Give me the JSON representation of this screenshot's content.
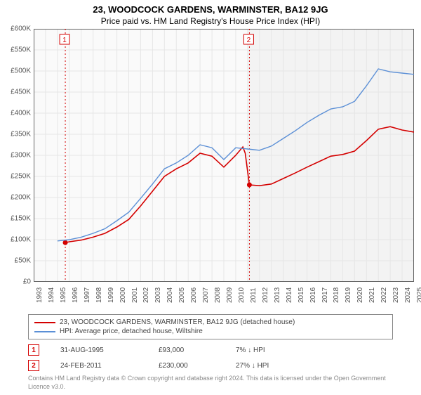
{
  "title": "23, WOODCOCK GARDENS, WARMINSTER, BA12 9JG",
  "subtitle": "Price paid vs. HM Land Registry's House Price Index (HPI)",
  "chart": {
    "type": "line",
    "background_color": "#ffffff",
    "plot_left_bg": "#fafafa",
    "plot_right_bg": "#f3f3f3",
    "grid_color": "#e6e6e6",
    "axis_color": "#666666",
    "x_years": [
      1993,
      1994,
      1995,
      1996,
      1997,
      1998,
      1999,
      2000,
      2001,
      2002,
      2003,
      2004,
      2005,
      2006,
      2007,
      2008,
      2009,
      2010,
      2011,
      2012,
      2013,
      2014,
      2015,
      2016,
      2017,
      2018,
      2019,
      2020,
      2021,
      2022,
      2023,
      2024,
      2025
    ],
    "vline_year": 2011,
    "ylim": [
      0,
      600000
    ],
    "ytick_step": 50000,
    "yticks_labels": [
      "£0",
      "£50K",
      "£100K",
      "£150K",
      "£200K",
      "£250K",
      "£300K",
      "£350K",
      "£400K",
      "£450K",
      "£500K",
      "£550K",
      "£600K"
    ],
    "label_fontsize": 10,
    "series": [
      {
        "name": "property",
        "label": "23, WOODCOCK GARDENS, WARMINSTER, BA12 9JG (detached house)",
        "color": "#d40000",
        "line_width": 1.6,
        "points": [
          [
            1995.66,
            93000
          ],
          [
            1996,
            95000
          ],
          [
            1997,
            99000
          ],
          [
            1998,
            106000
          ],
          [
            1999,
            115000
          ],
          [
            2000,
            130000
          ],
          [
            2001,
            148000
          ],
          [
            2002,
            180000
          ],
          [
            2003,
            215000
          ],
          [
            2004,
            250000
          ],
          [
            2005,
            268000
          ],
          [
            2006,
            282000
          ],
          [
            2007,
            305000
          ],
          [
            2008,
            298000
          ],
          [
            2009,
            272000
          ],
          [
            2010,
            300000
          ],
          [
            2010.6,
            320000
          ],
          [
            2010.8,
            305000
          ],
          [
            2011.15,
            230000
          ],
          [
            2012,
            228000
          ],
          [
            2013,
            232000
          ],
          [
            2014,
            245000
          ],
          [
            2015,
            258000
          ],
          [
            2016,
            272000
          ],
          [
            2017,
            285000
          ],
          [
            2018,
            298000
          ],
          [
            2019,
            302000
          ],
          [
            2020,
            310000
          ],
          [
            2021,
            335000
          ],
          [
            2022,
            362000
          ],
          [
            2023,
            368000
          ],
          [
            2024,
            360000
          ],
          [
            2025,
            355000
          ]
        ],
        "markers": [
          {
            "x": 1995.66,
            "y": 93000
          },
          {
            "x": 2011.15,
            "y": 230000
          }
        ]
      },
      {
        "name": "hpi",
        "label": "HPI: Average price, detached house, Wiltshire",
        "color": "#5b8fd6",
        "line_width": 1.4,
        "points": [
          [
            1995,
            97000
          ],
          [
            1996,
            100000
          ],
          [
            1997,
            106000
          ],
          [
            1998,
            115000
          ],
          [
            1999,
            126000
          ],
          [
            2000,
            145000
          ],
          [
            2001,
            165000
          ],
          [
            2002,
            198000
          ],
          [
            2003,
            232000
          ],
          [
            2004,
            268000
          ],
          [
            2005,
            282000
          ],
          [
            2006,
            300000
          ],
          [
            2007,
            325000
          ],
          [
            2008,
            318000
          ],
          [
            2009,
            290000
          ],
          [
            2010,
            318000
          ],
          [
            2011,
            315000
          ],
          [
            2012,
            312000
          ],
          [
            2013,
            322000
          ],
          [
            2014,
            340000
          ],
          [
            2015,
            358000
          ],
          [
            2016,
            378000
          ],
          [
            2017,
            395000
          ],
          [
            2018,
            410000
          ],
          [
            2019,
            415000
          ],
          [
            2020,
            428000
          ],
          [
            2021,
            465000
          ],
          [
            2022,
            505000
          ],
          [
            2023,
            498000
          ],
          [
            2024,
            495000
          ],
          [
            2025,
            492000
          ]
        ]
      }
    ],
    "event_lines": [
      {
        "n": "1",
        "x": 1995.66,
        "color": "#d40000"
      },
      {
        "n": "2",
        "x": 2011.15,
        "color": "#d40000"
      }
    ]
  },
  "legend": {
    "rows": [
      {
        "color": "#d40000",
        "label": "23, WOODCOCK GARDENS, WARMINSTER, BA12 9JG (detached house)"
      },
      {
        "color": "#5b8fd6",
        "label": "HPI: Average price, detached house, Wiltshire"
      }
    ]
  },
  "events": [
    {
      "n": "1",
      "color": "#d40000",
      "date": "31-AUG-1995",
      "price": "£93,000",
      "delta": "7%  ↓  HPI"
    },
    {
      "n": "2",
      "color": "#d40000",
      "date": "24-FEB-2011",
      "price": "£230,000",
      "delta": "27%  ↓  HPI"
    }
  ],
  "footnote": "Contains HM Land Registry data © Crown copyright and database right 2024. This data is licensed under the Open Government Licence v3.0."
}
